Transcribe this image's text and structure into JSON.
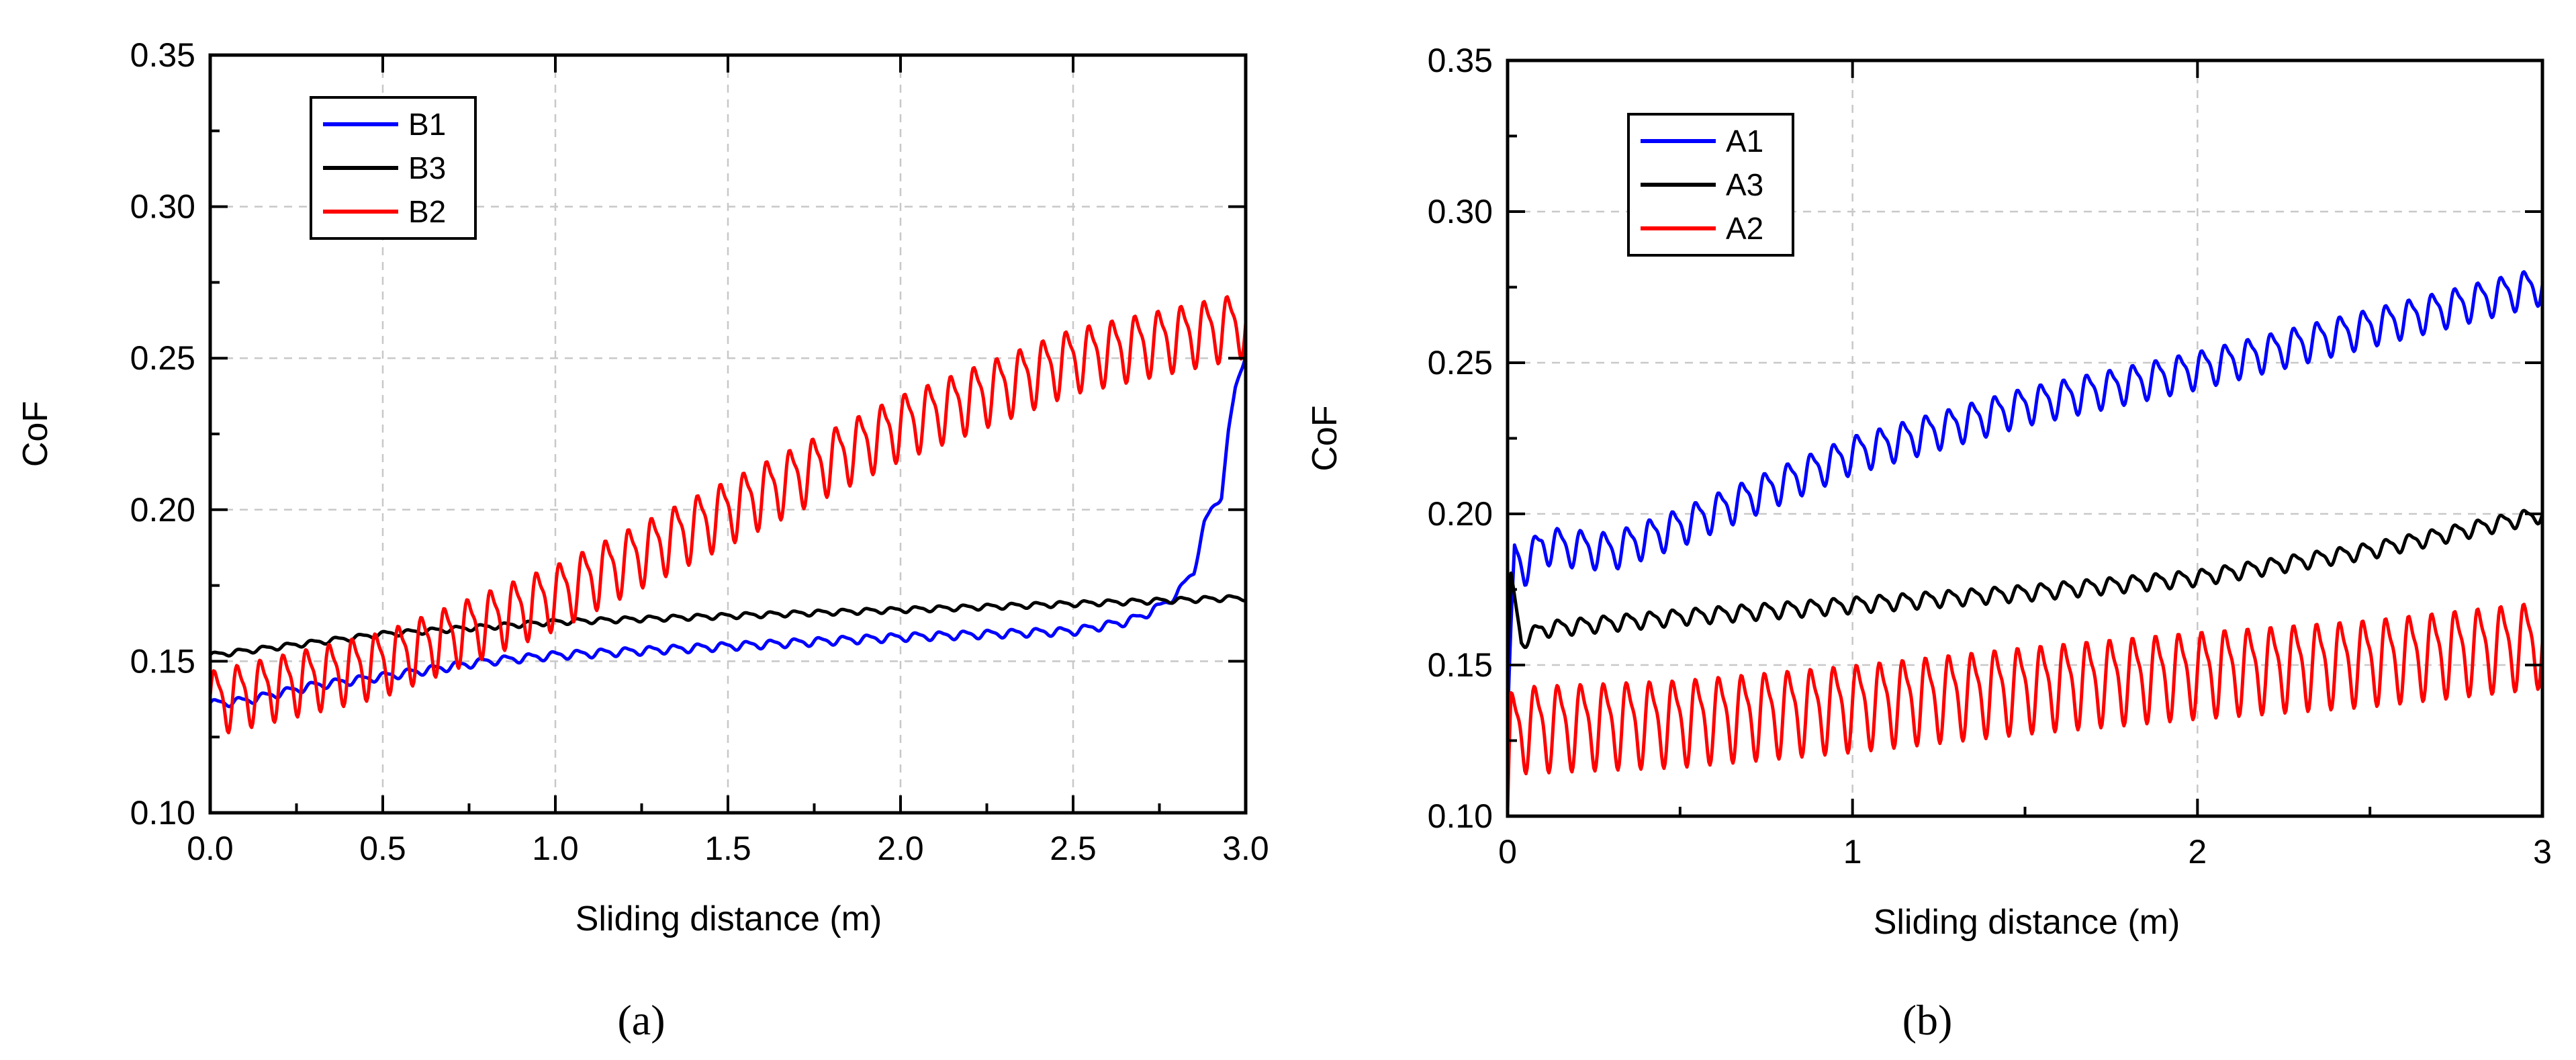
{
  "chart_data": [
    {
      "type": "line",
      "panel": "a",
      "caption": "(a)",
      "xlabel": "Sliding distance (m)",
      "ylabel": "CoF",
      "xlim": [
        0.0,
        3.0
      ],
      "ylim": [
        0.1,
        0.35
      ],
      "xticks": [
        "0.0",
        "0.5",
        "1.0",
        "1.5",
        "2.0",
        "2.5",
        "3.0"
      ],
      "xtick_values": [
        0.0,
        0.5,
        1.0,
        1.5,
        2.0,
        2.5,
        3.0
      ],
      "yticks": [
        "0.10",
        "0.15",
        "0.20",
        "0.25",
        "0.30",
        "0.35"
      ],
      "ytick_values": [
        0.1,
        0.15,
        0.2,
        0.25,
        0.3,
        0.35
      ],
      "grid": true,
      "legend_position": "top-left",
      "series": [
        {
          "name": "B1",
          "color": "#0000ff",
          "x": [
            0,
            0.1,
            0.3,
            0.5,
            0.8,
            1.0,
            1.5,
            2.0,
            2.5,
            2.65,
            2.7,
            2.75,
            2.8,
            2.85,
            2.88,
            2.9,
            2.93,
            2.95,
            2.97,
            3.0
          ],
          "y": [
            0.136,
            0.137,
            0.142,
            0.145,
            0.15,
            0.152,
            0.155,
            0.158,
            0.16,
            0.163,
            0.165,
            0.168,
            0.172,
            0.18,
            0.195,
            0.2,
            0.205,
            0.225,
            0.24,
            0.252
          ],
          "osc_amp": 0.0015,
          "osc_period": 0.07
        },
        {
          "name": "B3",
          "color": "#000000",
          "x": [
            0,
            0.5,
            1.0,
            1.5,
            2.0,
            2.5,
            3.0
          ],
          "y": [
            0.152,
            0.159,
            0.163,
            0.165,
            0.167,
            0.169,
            0.171
          ],
          "osc_amp": 0.001,
          "osc_period": 0.07
        },
        {
          "name": "B2",
          "color": "#ff0000",
          "x": [
            0,
            0.5,
            1.0,
            1.5,
            2.0,
            2.5,
            3.0
          ],
          "y": [
            0.137,
            0.15,
            0.172,
            0.2,
            0.228,
            0.25,
            0.262
          ],
          "osc_amp": 0.012,
          "osc_period": 0.0667
        }
      ]
    },
    {
      "type": "line",
      "panel": "b",
      "caption": "(b)",
      "xlabel": "Sliding distance (m)",
      "ylabel": "CoF",
      "xlim": [
        0,
        3
      ],
      "ylim": [
        0.1,
        0.35
      ],
      "xticks": [
        "0",
        "1",
        "2",
        "3"
      ],
      "xtick_values": [
        0,
        1,
        2,
        3
      ],
      "yticks": [
        "0.10",
        "0.15",
        "0.20",
        "0.25",
        "0.30",
        "0.35"
      ],
      "ytick_values": [
        0.1,
        0.15,
        0.2,
        0.25,
        0.3,
        0.35
      ],
      "grid": true,
      "legend_position": "top-left",
      "series": [
        {
          "name": "A1",
          "color": "#0000ff",
          "x": [
            0,
            0.02,
            0.05,
            0.1,
            0.3,
            0.5,
            1.0,
            1.5,
            2.0,
            2.5,
            3.0
          ],
          "y": [
            0.13,
            0.186,
            0.183,
            0.19,
            0.188,
            0.196,
            0.22,
            0.236,
            0.248,
            0.262,
            0.276
          ],
          "osc_amp": 0.007,
          "osc_period": 0.0667
        },
        {
          "name": "A3",
          "color": "#000000",
          "x": [
            0,
            0.01,
            0.04,
            0.1,
            0.5,
            1.0,
            1.5,
            2.0,
            2.5,
            3.0
          ],
          "y": [
            0.15,
            0.178,
            0.158,
            0.162,
            0.166,
            0.17,
            0.174,
            0.179,
            0.188,
            0.2
          ],
          "osc_amp": 0.003,
          "osc_period": 0.0667
        },
        {
          "name": "A2",
          "color": "#ff0000",
          "x": [
            0,
            0.01,
            0.05,
            0.5,
            1.0,
            1.5,
            2.0,
            2.5,
            3.0
          ],
          "y": [
            0.1,
            0.128,
            0.13,
            0.132,
            0.137,
            0.143,
            0.148,
            0.152,
            0.158
          ],
          "osc_amp": 0.016,
          "osc_period": 0.0667
        }
      ]
    }
  ]
}
